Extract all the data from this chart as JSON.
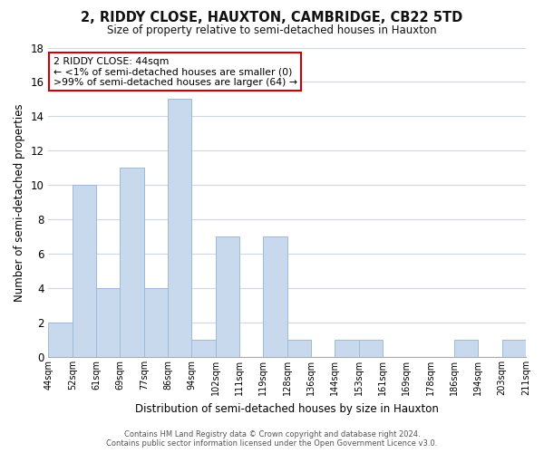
{
  "title": "2, RIDDY CLOSE, HAUXTON, CAMBRIDGE, CB22 5TD",
  "subtitle": "Size of property relative to semi-detached houses in Hauxton",
  "xlabel": "Distribution of semi-detached houses by size in Hauxton",
  "ylabel": "Number of semi-detached properties",
  "bar_values": [
    2,
    10,
    4,
    11,
    4,
    15,
    1,
    7,
    0,
    7,
    1,
    0,
    1,
    1,
    0,
    0,
    0,
    1,
    0,
    1
  ],
  "bin_labels": [
    "44sqm",
    "52sqm",
    "61sqm",
    "69sqm",
    "77sqm",
    "86sqm",
    "94sqm",
    "102sqm",
    "111sqm",
    "119sqm",
    "128sqm",
    "136sqm",
    "144sqm",
    "153sqm",
    "161sqm",
    "169sqm",
    "178sqm",
    "186sqm",
    "194sqm",
    "203sqm",
    "211sqm"
  ],
  "bar_color": "#c8d9ee",
  "bar_edge_color": "#9dbad8",
  "annotation_title": "2 RIDDY CLOSE: 44sqm",
  "annotation_line1": "← <1% of semi-detached houses are smaller (0)",
  "annotation_line2": ">99% of semi-detached houses are larger (64) →",
  "annotation_box_facecolor": "#ffffff",
  "annotation_border_color": "#cc0000",
  "ylim": [
    0,
    18
  ],
  "yticks": [
    0,
    2,
    4,
    6,
    8,
    10,
    12,
    14,
    16,
    18
  ],
  "footer_line1": "Contains HM Land Registry data © Crown copyright and database right 2024.",
  "footer_line2": "Contains public sector information licensed under the Open Government Licence v3.0.",
  "background_color": "#ffffff",
  "grid_color": "#cdd8e5",
  "title_fontsize": 10.5,
  "subtitle_fontsize": 8.5
}
